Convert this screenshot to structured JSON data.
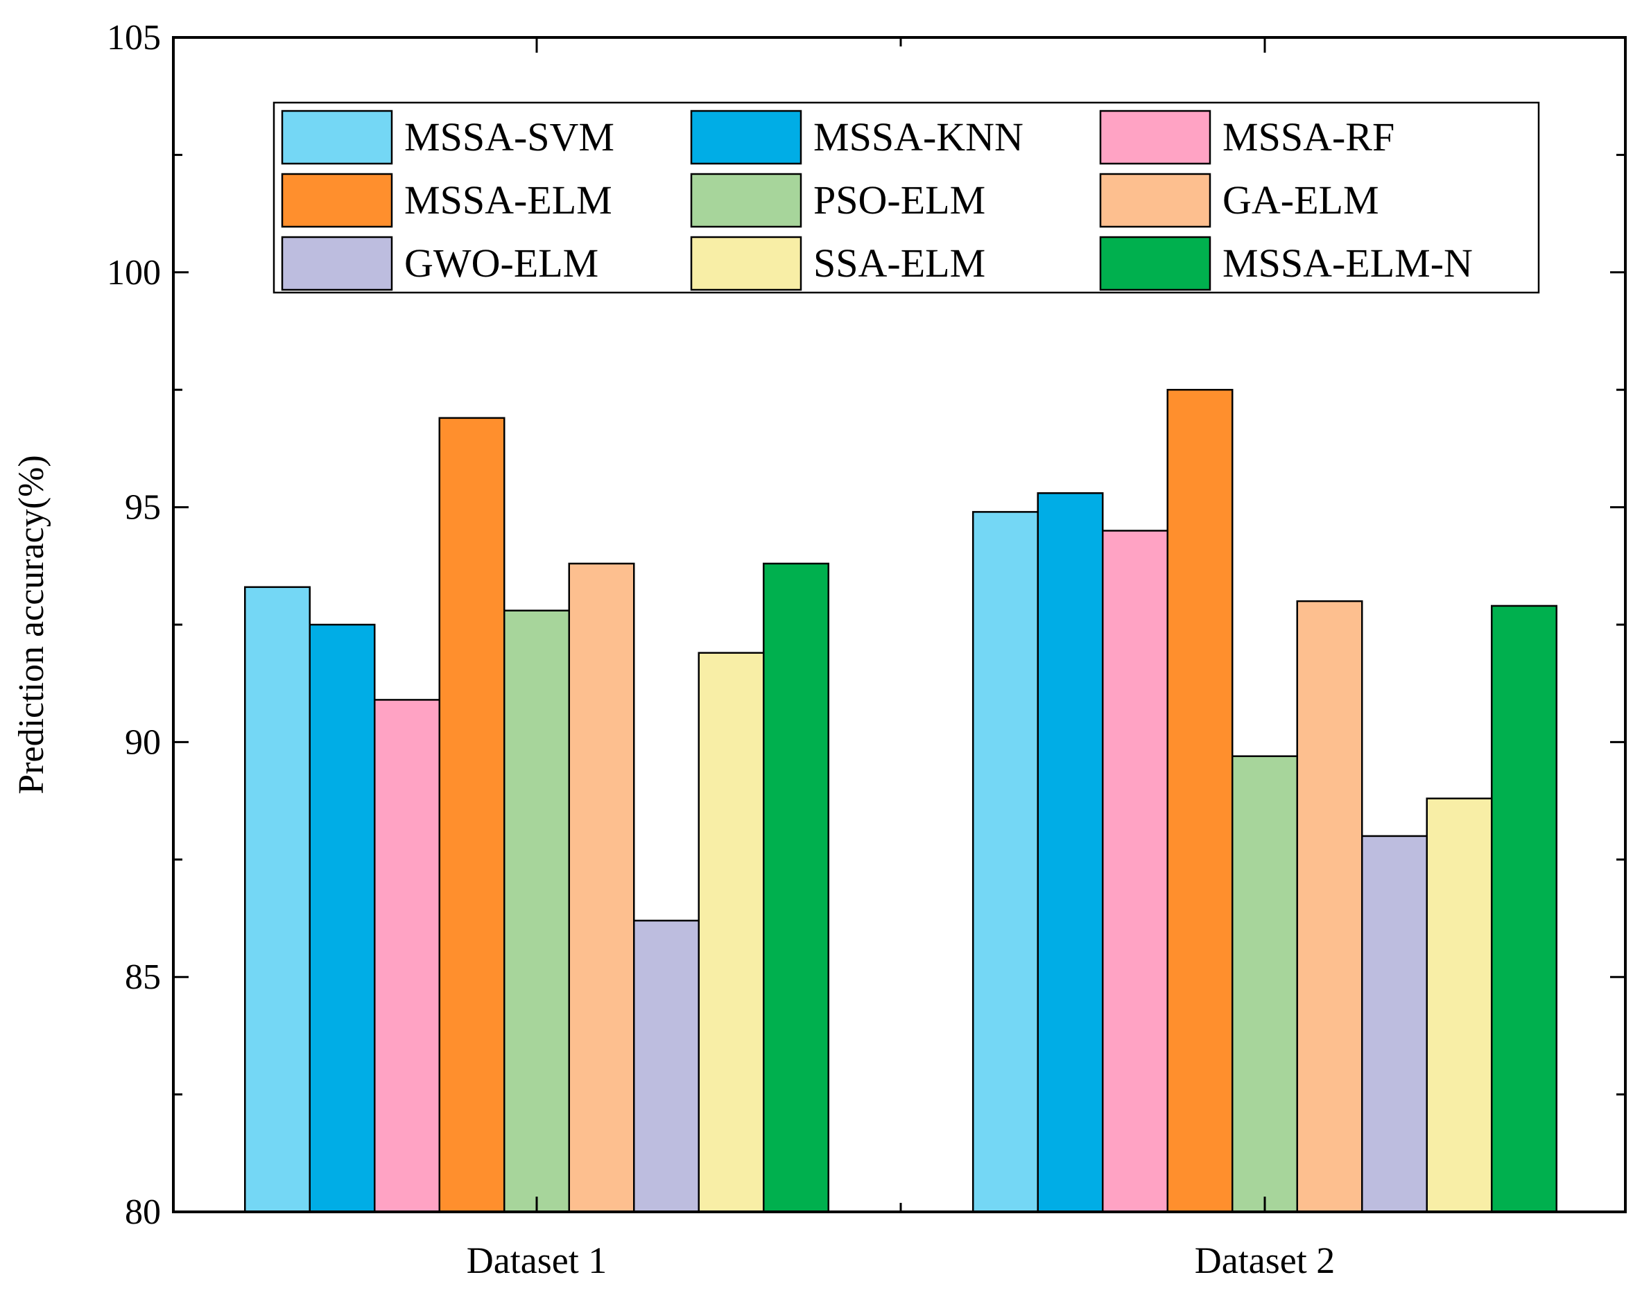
{
  "chart_data": {
    "type": "bar",
    "title": "",
    "xlabel": "",
    "ylabel": "Prediction accuracy(%)",
    "ylim": [
      80,
      105
    ],
    "yticks": [
      80,
      85,
      90,
      95,
      100,
      105
    ],
    "grid": false,
    "legend_position": "top",
    "categories": [
      "Dataset 1",
      "Dataset 2"
    ],
    "series": [
      {
        "name": "MSSA-SVM",
        "color": "#74d7f5",
        "values": [
          93.3,
          94.9
        ]
      },
      {
        "name": "MSSA-KNN",
        "color": "#00ade6",
        "values": [
          92.5,
          95.3
        ]
      },
      {
        "name": "MSSA-RF",
        "color": "#ffa3c4",
        "values": [
          90.9,
          94.5
        ]
      },
      {
        "name": "MSSA-ELM",
        "color": "#ff8f2d",
        "values": [
          96.9,
          97.5
        ]
      },
      {
        "name": "PSO-ELM",
        "color": "#a7d59b",
        "values": [
          92.8,
          89.7
        ]
      },
      {
        "name": "GA-ELM",
        "color": "#fdbf8f",
        "values": [
          93.8,
          93.0
        ]
      },
      {
        "name": "GWO-ELM",
        "color": "#bdbddf",
        "values": [
          86.2,
          88.0
        ]
      },
      {
        "name": "SSA-ELM",
        "color": "#f8eea6",
        "values": [
          91.9,
          88.8
        ]
      },
      {
        "name": "MSSA-ELM-N",
        "color": "#00b04e",
        "values": [
          93.8,
          92.9
        ]
      }
    ]
  }
}
